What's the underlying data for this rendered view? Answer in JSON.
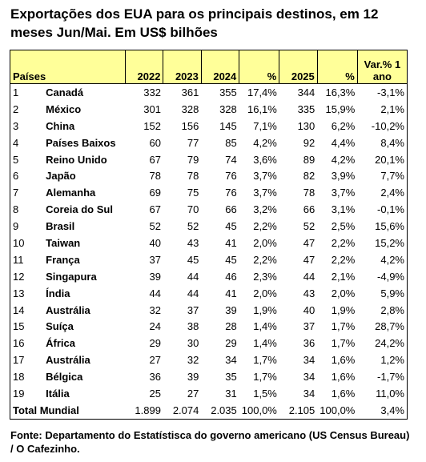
{
  "title": "Exportações dos EUA para os principais destinos, em 12 meses Jun/Mai. Em US$ bilhões",
  "table": {
    "header": [
      "Países",
      "2022",
      "2023",
      "2024",
      "%",
      "2025",
      "%",
      "Var.% 1 ano"
    ],
    "rows": [
      [
        "1",
        "Canadá",
        "332",
        "361",
        "355",
        "17,4%",
        "344",
        "16,3%",
        "-3,1%"
      ],
      [
        "2",
        "México",
        "301",
        "328",
        "328",
        "16,1%",
        "335",
        "15,9%",
        "2,1%"
      ],
      [
        "3",
        "China",
        "152",
        "156",
        "145",
        "7,1%",
        "130",
        "6,2%",
        "-10,2%"
      ],
      [
        "4",
        "Países Baixos",
        "60",
        "77",
        "85",
        "4,2%",
        "92",
        "4,4%",
        "8,4%"
      ],
      [
        "5",
        "Reino Unido",
        "67",
        "79",
        "74",
        "3,6%",
        "89",
        "4,2%",
        "20,1%"
      ],
      [
        "6",
        "Japão",
        "78",
        "78",
        "76",
        "3,7%",
        "82",
        "3,9%",
        "7,7%"
      ],
      [
        "7",
        "Alemanha",
        "69",
        "75",
        "76",
        "3,7%",
        "78",
        "3,7%",
        "2,4%"
      ],
      [
        "8",
        "Coreia do Sul",
        "67",
        "70",
        "66",
        "3,2%",
        "66",
        "3,1%",
        "-0,1%"
      ],
      [
        "9",
        "Brasil",
        "52",
        "52",
        "45",
        "2,2%",
        "52",
        "2,5%",
        "15,6%"
      ],
      [
        "10",
        "Taiwan",
        "40",
        "43",
        "41",
        "2,0%",
        "47",
        "2,2%",
        "15,2%"
      ],
      [
        "11",
        "França",
        "37",
        "45",
        "45",
        "2,2%",
        "47",
        "2,2%",
        "4,2%"
      ],
      [
        "12",
        "Singapura",
        "39",
        "44",
        "46",
        "2,3%",
        "44",
        "2,1%",
        "-4,9%"
      ],
      [
        "13",
        "Índia",
        "44",
        "44",
        "41",
        "2,0%",
        "43",
        "2,0%",
        "5,9%"
      ],
      [
        "14",
        "Austrália",
        "32",
        "37",
        "39",
        "1,9%",
        "40",
        "1,9%",
        "2,8%"
      ],
      [
        "15",
        "Suíça",
        "24",
        "38",
        "28",
        "1,4%",
        "37",
        "1,7%",
        "28,7%"
      ],
      [
        "16",
        "África",
        "29",
        "30",
        "29",
        "1,4%",
        "36",
        "1,7%",
        "24,2%"
      ],
      [
        "17",
        "Austrália",
        "27",
        "32",
        "34",
        "1,7%",
        "34",
        "1,6%",
        "1,2%"
      ],
      [
        "18",
        "Bélgica",
        "36",
        "39",
        "35",
        "1,7%",
        "34",
        "1,6%",
        "-1,7%"
      ],
      [
        "19",
        "Itália",
        "25",
        "27",
        "31",
        "1,5%",
        "34",
        "1,6%",
        "11,0%"
      ]
    ],
    "total": [
      "Total Mundial",
      "1.899",
      "2.074",
      "2.035",
      "100,0%",
      "2.105",
      "100,0%",
      "3,4%"
    ]
  },
  "footer": "Fonte: Departamento do Estatístisca do governo americano (US Census Bureau) / O Cafezinho."
}
